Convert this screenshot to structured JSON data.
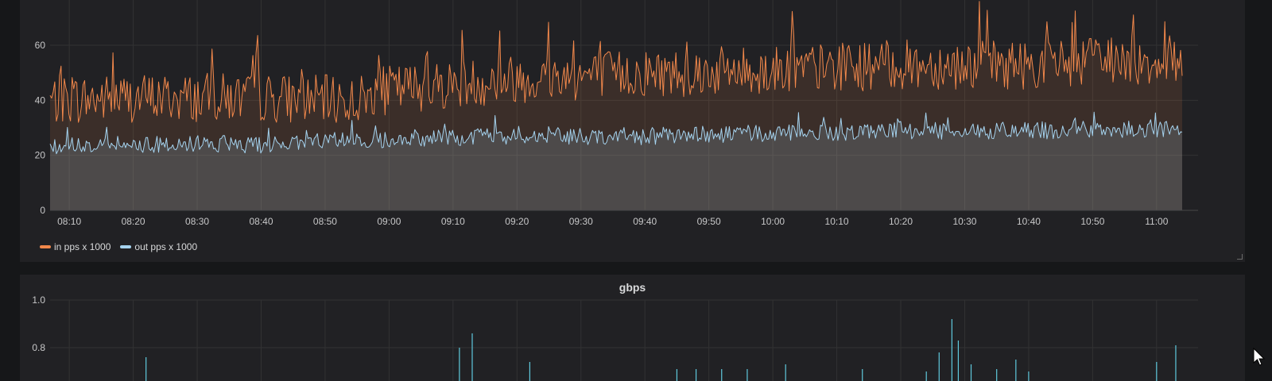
{
  "panels": [
    {
      "title": "",
      "legend": [
        {
          "label": "in pps x 1000",
          "color": "#f2884b"
        },
        {
          "label": "out pps x 1000",
          "color": "#a5d3ef"
        }
      ]
    },
    {
      "title": "gbps"
    }
  ],
  "chart_data": [
    {
      "type": "line",
      "title": "",
      "x_ticks": [
        "08:10",
        "08:20",
        "08:30",
        "08:40",
        "08:50",
        "09:00",
        "09:10",
        "09:20",
        "09:30",
        "09:40",
        "09:50",
        "10:00",
        "10:10",
        "10:20",
        "10:30",
        "10:40",
        "10:50",
        "11:00"
      ],
      "y_ticks": [
        "0",
        "20",
        "40",
        "60"
      ],
      "ylim": [
        0,
        75
      ],
      "xlim": [
        "08:07",
        "11:04"
      ],
      "grid": true,
      "legend_position": "bottom-left",
      "series": [
        {
          "name": "in pps x 1000",
          "color": "#f2884b",
          "fill": true,
          "time": [
            "08:07",
            "08:20",
            "08:40",
            "08:55",
            "09:00",
            "09:20",
            "09:40",
            "10:00",
            "10:20",
            "10:40",
            "11:04"
          ],
          "values": [
            40,
            41,
            41,
            40,
            44,
            48,
            50,
            51,
            53,
            53,
            55
          ]
        },
        {
          "name": "out pps x 1000",
          "color": "#a5d3ef",
          "fill": true,
          "time": [
            "08:07",
            "08:20",
            "08:40",
            "09:00",
            "09:20",
            "09:40",
            "10:00",
            "10:20",
            "10:40",
            "11:04"
          ],
          "values": [
            23,
            24,
            24,
            26,
            27,
            27,
            28,
            29,
            29,
            30
          ]
        }
      ]
    },
    {
      "type": "bar",
      "title": "gbps",
      "y_ticks": [
        "0.8",
        "1.0"
      ],
      "ylim_visible": [
        0.7,
        1.0
      ],
      "grid": true,
      "series": [
        {
          "name": "",
          "color": "#5fc9dd",
          "time": [
            "08:22",
            "09:11",
            "09:13",
            "09:22",
            "09:45",
            "09:48",
            "09:52",
            "09:56",
            "10:02",
            "10:14",
            "10:24",
            "10:26",
            "10:28",
            "10:29",
            "10:31",
            "10:35",
            "10:38",
            "10:40",
            "11:00",
            "11:03"
          ],
          "values": [
            0.76,
            0.8,
            0.86,
            0.74,
            0.71,
            0.71,
            0.71,
            0.71,
            0.73,
            0.71,
            0.7,
            0.78,
            0.92,
            0.83,
            0.73,
            0.71,
            0.75,
            0.7,
            0.74,
            0.81
          ]
        }
      ]
    }
  ]
}
